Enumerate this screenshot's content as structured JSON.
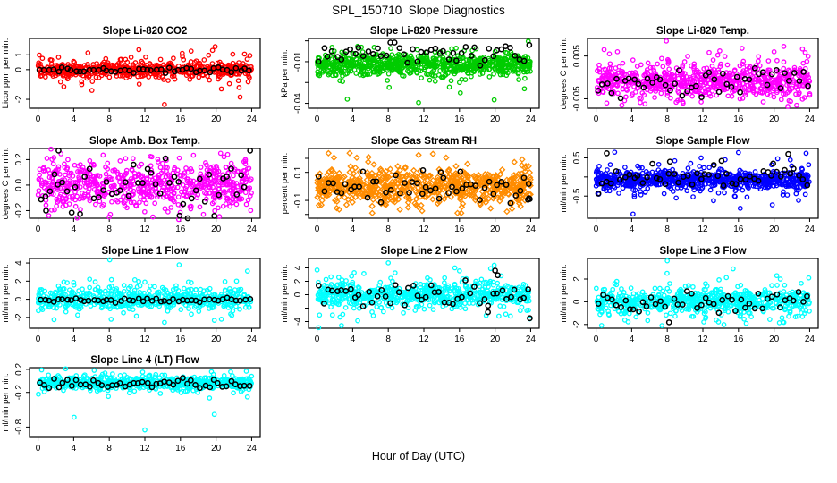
{
  "figure": {
    "title": "SPL_150710  Slope Diagnostics",
    "xaxis": {
      "label": "Hour of Day (UTC)",
      "tick_labels": [
        "0",
        "4",
        "8",
        "12",
        "16",
        "20",
        "24"
      ],
      "tick_values": [
        0,
        4,
        8,
        12,
        16,
        20,
        24
      ],
      "range": [
        0,
        24
      ]
    },
    "axis_color": "#000000",
    "overlay_color": "#000000",
    "background": "#FFFFFF"
  },
  "chart_data": [
    {
      "id": "li820-co2",
      "type": "scatter",
      "title": "Slope Li-820 CO2",
      "ylabel": "Licor ppm per min.",
      "color": "#FF0000",
      "symbol": "circle",
      "seed": 11,
      "ylim": [
        -2.6,
        2.1
      ],
      "yticks": [
        {
          "v": 1,
          "label": "1"
        },
        {
          "v": 0,
          "label": "0"
        },
        {
          "v": -2,
          "label": "-2"
        }
      ],
      "n": 650,
      "center": 0,
      "spread": 0.22,
      "tail_frac": 0.14,
      "tail_spread": 0.55,
      "outliers": [
        [
          14.2,
          -2.35
        ],
        [
          22.7,
          -1.85
        ],
        [
          2.9,
          -1.15
        ],
        [
          20.6,
          -1.3
        ],
        [
          21.5,
          -0.95
        ],
        [
          6.1,
          -0.8
        ],
        [
          19.9,
          1.55
        ],
        [
          19.6,
          1.3
        ],
        [
          23.2,
          1.05
        ],
        [
          17.2,
          1.25
        ],
        [
          16.2,
          1.1
        ],
        [
          23.8,
          0.95
        ],
        [
          12.1,
          0.85
        ]
      ],
      "overlay": {
        "n": 48,
        "center": -0.02,
        "spread": 0.09
      }
    },
    {
      "id": "li820-pressure",
      "type": "scatter",
      "title": "Slope Li-820 Pressure",
      "ylabel": "kPa per min.",
      "color": "#00CC00",
      "symbol": "circle",
      "seed": 22,
      "ylim": [
        -0.0435,
        0.0067
      ],
      "yticks": [
        {
          "v": 0.005,
          "label": ""
        },
        {
          "v": -0.01,
          "label": "-0.01"
        },
        {
          "v": -0.025,
          "label": ""
        },
        {
          "v": -0.04,
          "label": "-0.04"
        }
      ],
      "n": 800,
      "center": -0.012,
      "spread": 0.0035,
      "tail_frac": 0.12,
      "tail_spread": 0.008,
      "outliers": [
        [
          3.4,
          -0.037
        ],
        [
          11.4,
          -0.0395
        ],
        [
          19.9,
          -0.0375
        ],
        [
          23.3,
          -0.0295
        ],
        [
          16.1,
          -0.0325
        ],
        [
          8.1,
          -0.0285
        ],
        [
          7.9,
          -0.0235
        ],
        [
          14.2,
          -0.021
        ],
        [
          0.3,
          -0.0185
        ],
        [
          12.3,
          -0.019
        ],
        [
          16.0,
          -0.025
        ],
        [
          22.0,
          -0.017
        ],
        [
          5.2,
          -0.016
        ]
      ],
      "overlay": {
        "n": 48,
        "center": -0.0045,
        "spread": 0.004
      }
    },
    {
      "id": "li820-temp",
      "type": "scatter",
      "title": "Slope Li-820 Temp.",
      "ylabel": "degrees C per min.",
      "color": "#FF00FF",
      "symbol": "circle",
      "seed": 33,
      "ylim": [
        -0.0072,
        0.0091
      ],
      "yticks": [
        {
          "v": 0.005,
          "label": "0.005"
        },
        {
          "v": -0.005,
          "label": "-0.005"
        }
      ],
      "n": 700,
      "center": -0.0008,
      "spread": 0.0018,
      "tail_frac": 0.18,
      "tail_spread": 0.0033,
      "outliers": [
        [
          7.9,
          0.0085
        ],
        [
          0.9,
          0.0065
        ],
        [
          2.4,
          0.006
        ],
        [
          1.5,
          0.0055
        ],
        [
          13.9,
          0.0062
        ],
        [
          16.4,
          0.0068
        ],
        [
          5.5,
          -0.0062
        ],
        [
          1.2,
          -0.006
        ],
        [
          2.9,
          -0.0065
        ],
        [
          20.0,
          0.006
        ],
        [
          23.5,
          0.0058
        ],
        [
          9.0,
          -0.0058
        ]
      ],
      "overlay": {
        "n": 48,
        "center": -0.001,
        "spread": 0.0018
      }
    },
    {
      "id": "amb-box-temp",
      "type": "scatter",
      "title": "Slope Amb. Box Temp.",
      "ylabel": "degrees C per min.",
      "color": "#FF00FF",
      "symbol": "circle",
      "seed": 44,
      "ylim": [
        -0.26,
        0.287
      ],
      "yticks": [
        {
          "v": 0.2,
          "label": "0.2"
        },
        {
          "v": 0,
          "label": "0.0"
        },
        {
          "v": -0.2,
          "label": "-0.2"
        }
      ],
      "n": 650,
      "center": 0,
      "spread": 0.085,
      "tail_frac": 0.2,
      "tail_spread": 0.15,
      "outliers": [
        [
          1.0,
          0.21
        ],
        [
          21.3,
          0.24
        ],
        [
          23.3,
          0.2
        ],
        [
          15.8,
          -0.27
        ],
        [
          12.9,
          -0.25
        ],
        [
          1.2,
          -0.24
        ],
        [
          8.0,
          -0.25
        ]
      ],
      "overlay": {
        "n": 48,
        "center": 0,
        "spread": 0.1,
        "outliers": [
          [
            2.3,
            0.27
          ],
          [
            0.9,
            -0.2
          ],
          [
            15.9,
            -0.24
          ]
        ]
      }
    },
    {
      "id": "gas-stream-rh",
      "type": "scatter",
      "title": "Slope Gas Stream RH",
      "ylabel": "percent per min.",
      "color": "#FF8C00",
      "symbol": "diamond",
      "seed": 55,
      "ylim": [
        -0.227,
        0.27
      ],
      "yticks": [
        {
          "v": 0.2,
          "label": ""
        },
        {
          "v": 0.1,
          "label": "0.1"
        },
        {
          "v": -0.1,
          "label": "-0.1"
        },
        {
          "v": -0.2,
          "label": ""
        }
      ],
      "n": 700,
      "center": 0,
      "spread": 0.055,
      "tail_frac": 0.2,
      "tail_spread": 0.1,
      "outliers": [
        [
          1.9,
          0.205
        ],
        [
          14.5,
          0.205
        ],
        [
          16.9,
          0.16
        ],
        [
          23.0,
          0.15
        ],
        [
          6.2,
          -0.19
        ],
        [
          11.8,
          -0.175
        ],
        [
          16.2,
          -0.19
        ],
        [
          21.9,
          -0.16
        ],
        [
          9.3,
          -0.165
        ],
        [
          0.2,
          -0.135
        ]
      ],
      "overlay": {
        "n": 48,
        "center": -0.01,
        "spread": 0.05,
        "outliers": [
          [
            23.8,
            -0.085
          ],
          [
            23.9,
            -0.09
          ],
          [
            23.7,
            -0.095
          ],
          [
            11.9,
            0.115
          ],
          [
            13.9,
            0.1
          ],
          [
            16.1,
            0.105
          ]
        ]
      }
    },
    {
      "id": "sample-flow",
      "type": "scatter",
      "title": "Slope Sample Flow",
      "ylabel": "ml/min per min.",
      "color": "#0000FF",
      "symbol": "circle",
      "seed": 66,
      "ylim": [
        -1.08,
        0.745
      ],
      "yticks": [
        {
          "v": 0.5,
          "label": "0.5"
        },
        {
          "v": 0,
          "label": ""
        },
        {
          "v": -0.5,
          "label": "-0.5"
        }
      ],
      "n": 800,
      "center": -0.08,
      "spread": 0.11,
      "tail_frac": 0.15,
      "tail_spread": 0.25,
      "outliers": [
        [
          4.15,
          -0.97
        ],
        [
          16.2,
          -0.82
        ],
        [
          19.8,
          -0.73
        ],
        [
          13.2,
          -0.62
        ],
        [
          9.0,
          -0.55
        ],
        [
          10.9,
          -0.52
        ],
        [
          16.0,
          0.64
        ],
        [
          23.6,
          0.62
        ],
        [
          11.8,
          0.5
        ],
        [
          14.5,
          0.45
        ],
        [
          0.3,
          -0.45
        ],
        [
          21.0,
          -0.47
        ]
      ],
      "overlay": {
        "n": 48,
        "center": 0.0,
        "spread": 0.13,
        "outliers": [
          [
            1.2,
            0.62
          ],
          [
            21.6,
            0.6
          ],
          [
            19.9,
            0.35
          ],
          [
            8.3,
            0.4
          ],
          [
            14.1,
            0.42
          ]
        ]
      }
    },
    {
      "id": "line1-flow",
      "type": "scatter",
      "title": "Slope Line 1 Flow",
      "ylabel": "ml/min per min.",
      "color": "#00FFFF",
      "symbol": "circle",
      "seed": 77,
      "ylim": [
        -3.2,
        4.5
      ],
      "yticks": [
        {
          "v": 4,
          "label": "4"
        },
        {
          "v": 2,
          "label": "2"
        },
        {
          "v": 0,
          "label": "0"
        },
        {
          "v": -2,
          "label": "-2"
        }
      ],
      "n": 600,
      "center": 0,
      "spread": 0.55,
      "tail_frac": 0.28,
      "tail_spread": 1.05,
      "outliers": [
        [
          8.05,
          4.35
        ],
        [
          15.85,
          3.8
        ],
        [
          14.2,
          -2.55
        ],
        [
          20.6,
          -2.2
        ],
        [
          21.0,
          1.95
        ],
        [
          2.9,
          1.9
        ],
        [
          4.0,
          1.85
        ],
        [
          12.0,
          1.9
        ],
        [
          16.9,
          1.9
        ],
        [
          22.3,
          2.0
        ]
      ],
      "overlay": {
        "n": 48,
        "center": -0.1,
        "spread": 0.09
      }
    },
    {
      "id": "line2-flow",
      "type": "scatter",
      "title": "Slope Line 2 Flow",
      "ylabel": "ml/min per min.",
      "color": "#00FFFF",
      "symbol": "circle",
      "seed": 88,
      "ylim": [
        -5.0,
        5.4
      ],
      "yticks": [
        {
          "v": 4,
          "label": "4"
        },
        {
          "v": 2,
          "label": "2"
        },
        {
          "v": 0,
          "label": "0"
        },
        {
          "v": -2,
          "label": ""
        },
        {
          "v": -4,
          "label": "-4"
        }
      ],
      "n": 650,
      "center": 0,
      "spread": 0.75,
      "tail_frac": 0.3,
      "tail_spread": 1.6,
      "outliers": [
        [
          8.0,
          4.75
        ],
        [
          19.9,
          4.4
        ],
        [
          19.5,
          3.9
        ],
        [
          16.0,
          3.55
        ],
        [
          2.75,
          -4.6
        ],
        [
          23.9,
          -3.6
        ],
        [
          19.0,
          -3.1
        ],
        [
          21.2,
          -2.9
        ],
        [
          12.4,
          2.5
        ],
        [
          2.8,
          2.2
        ]
      ],
      "overlay": {
        "n": 48,
        "center": 0,
        "spread": 0.85,
        "outliers": [
          [
            23.9,
            -3.5
          ],
          [
            19.2,
            -2.6
          ],
          [
            20.0,
            3.6
          ],
          [
            20.3,
            2.9
          ]
        ]
      }
    },
    {
      "id": "line3-flow",
      "type": "scatter",
      "title": "Slope Line 3 Flow",
      "ylabel": "ml/min per min.",
      "color": "#00FFFF",
      "symbol": "circle",
      "seed": 99,
      "ylim": [
        -2.33,
        3.81
      ],
      "yticks": [
        {
          "v": 2,
          "label": "2"
        },
        {
          "v": 0,
          "label": "0"
        },
        {
          "v": -2,
          "label": "-2"
        }
      ],
      "n": 650,
      "center": 0,
      "spread": 0.5,
      "tail_frac": 0.25,
      "tail_spread": 0.95,
      "outliers": [
        [
          8.0,
          3.6
        ],
        [
          15.4,
          2.9
        ],
        [
          20.3,
          2.3
        ],
        [
          23.9,
          2.1
        ],
        [
          20.7,
          2.0
        ],
        [
          2.1,
          1.6
        ],
        [
          7.4,
          -2.1
        ],
        [
          20.6,
          -1.85
        ],
        [
          21.0,
          -1.8
        ],
        [
          13.5,
          -1.6
        ]
      ],
      "overlay": {
        "n": 48,
        "center": 0,
        "spread": 0.5
      }
    },
    {
      "id": "line4-lt-flow",
      "type": "scatter",
      "title": "Slope Line 4 (LT) Flow",
      "ylabel": "ml/min per min.",
      "color": "#00FFFF",
      "symbol": "circle",
      "seed": 110,
      "ylim": [
        -0.98,
        0.23
      ],
      "yticks": [
        {
          "v": 0.2,
          "label": "0.2"
        },
        {
          "v": -0.2,
          "label": "-0.2"
        },
        {
          "v": -0.8,
          "label": "-0.8"
        }
      ],
      "n": 700,
      "center": -0.04,
      "spread": 0.05,
      "tail_frac": 0.15,
      "tail_spread": 0.1,
      "outliers": [
        [
          4.05,
          -0.63
        ],
        [
          12.0,
          -0.85
        ],
        [
          19.8,
          -0.58
        ],
        [
          3.1,
          0.21
        ],
        [
          0.4,
          0.19
        ],
        [
          7.9,
          -0.27
        ]
      ],
      "overlay": {
        "n": 48,
        "center": -0.05,
        "spread": 0.045
      }
    }
  ]
}
